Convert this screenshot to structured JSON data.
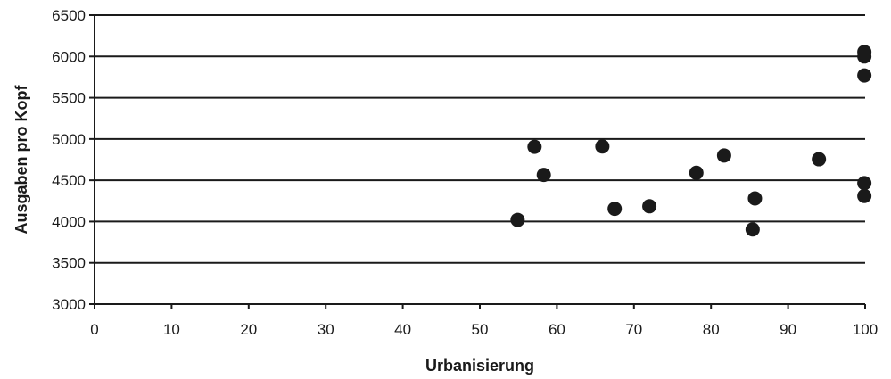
{
  "chart_data": {
    "type": "scatter",
    "title": "",
    "xlabel": "Urbanisierung",
    "ylabel": "Ausgaben pro Kopf",
    "xlim": [
      0,
      100
    ],
    "ylim": [
      3000,
      6500
    ],
    "xticks": [
      0,
      10,
      20,
      30,
      40,
      50,
      60,
      70,
      80,
      90,
      100
    ],
    "yticks": [
      3000,
      3500,
      4000,
      4500,
      5000,
      5500,
      6000,
      6500
    ],
    "grid": "horizontal",
    "legend": "none",
    "marker_color": "#1a1a1a",
    "points": [
      {
        "x": 54.9,
        "y": 4020
      },
      {
        "x": 57.1,
        "y": 4905
      },
      {
        "x": 58.3,
        "y": 4565
      },
      {
        "x": 65.9,
        "y": 4910
      },
      {
        "x": 67.5,
        "y": 4155
      },
      {
        "x": 72.0,
        "y": 4185
      },
      {
        "x": 78.1,
        "y": 4590
      },
      {
        "x": 81.7,
        "y": 4800
      },
      {
        "x": 85.4,
        "y": 3905
      },
      {
        "x": 85.7,
        "y": 4280
      },
      {
        "x": 94.0,
        "y": 4755
      },
      {
        "x": 99.9,
        "y": 4310
      },
      {
        "x": 99.9,
        "y": 4465
      },
      {
        "x": 99.9,
        "y": 5770
      },
      {
        "x": 99.9,
        "y": 6000
      },
      {
        "x": 99.9,
        "y": 6055
      }
    ]
  }
}
